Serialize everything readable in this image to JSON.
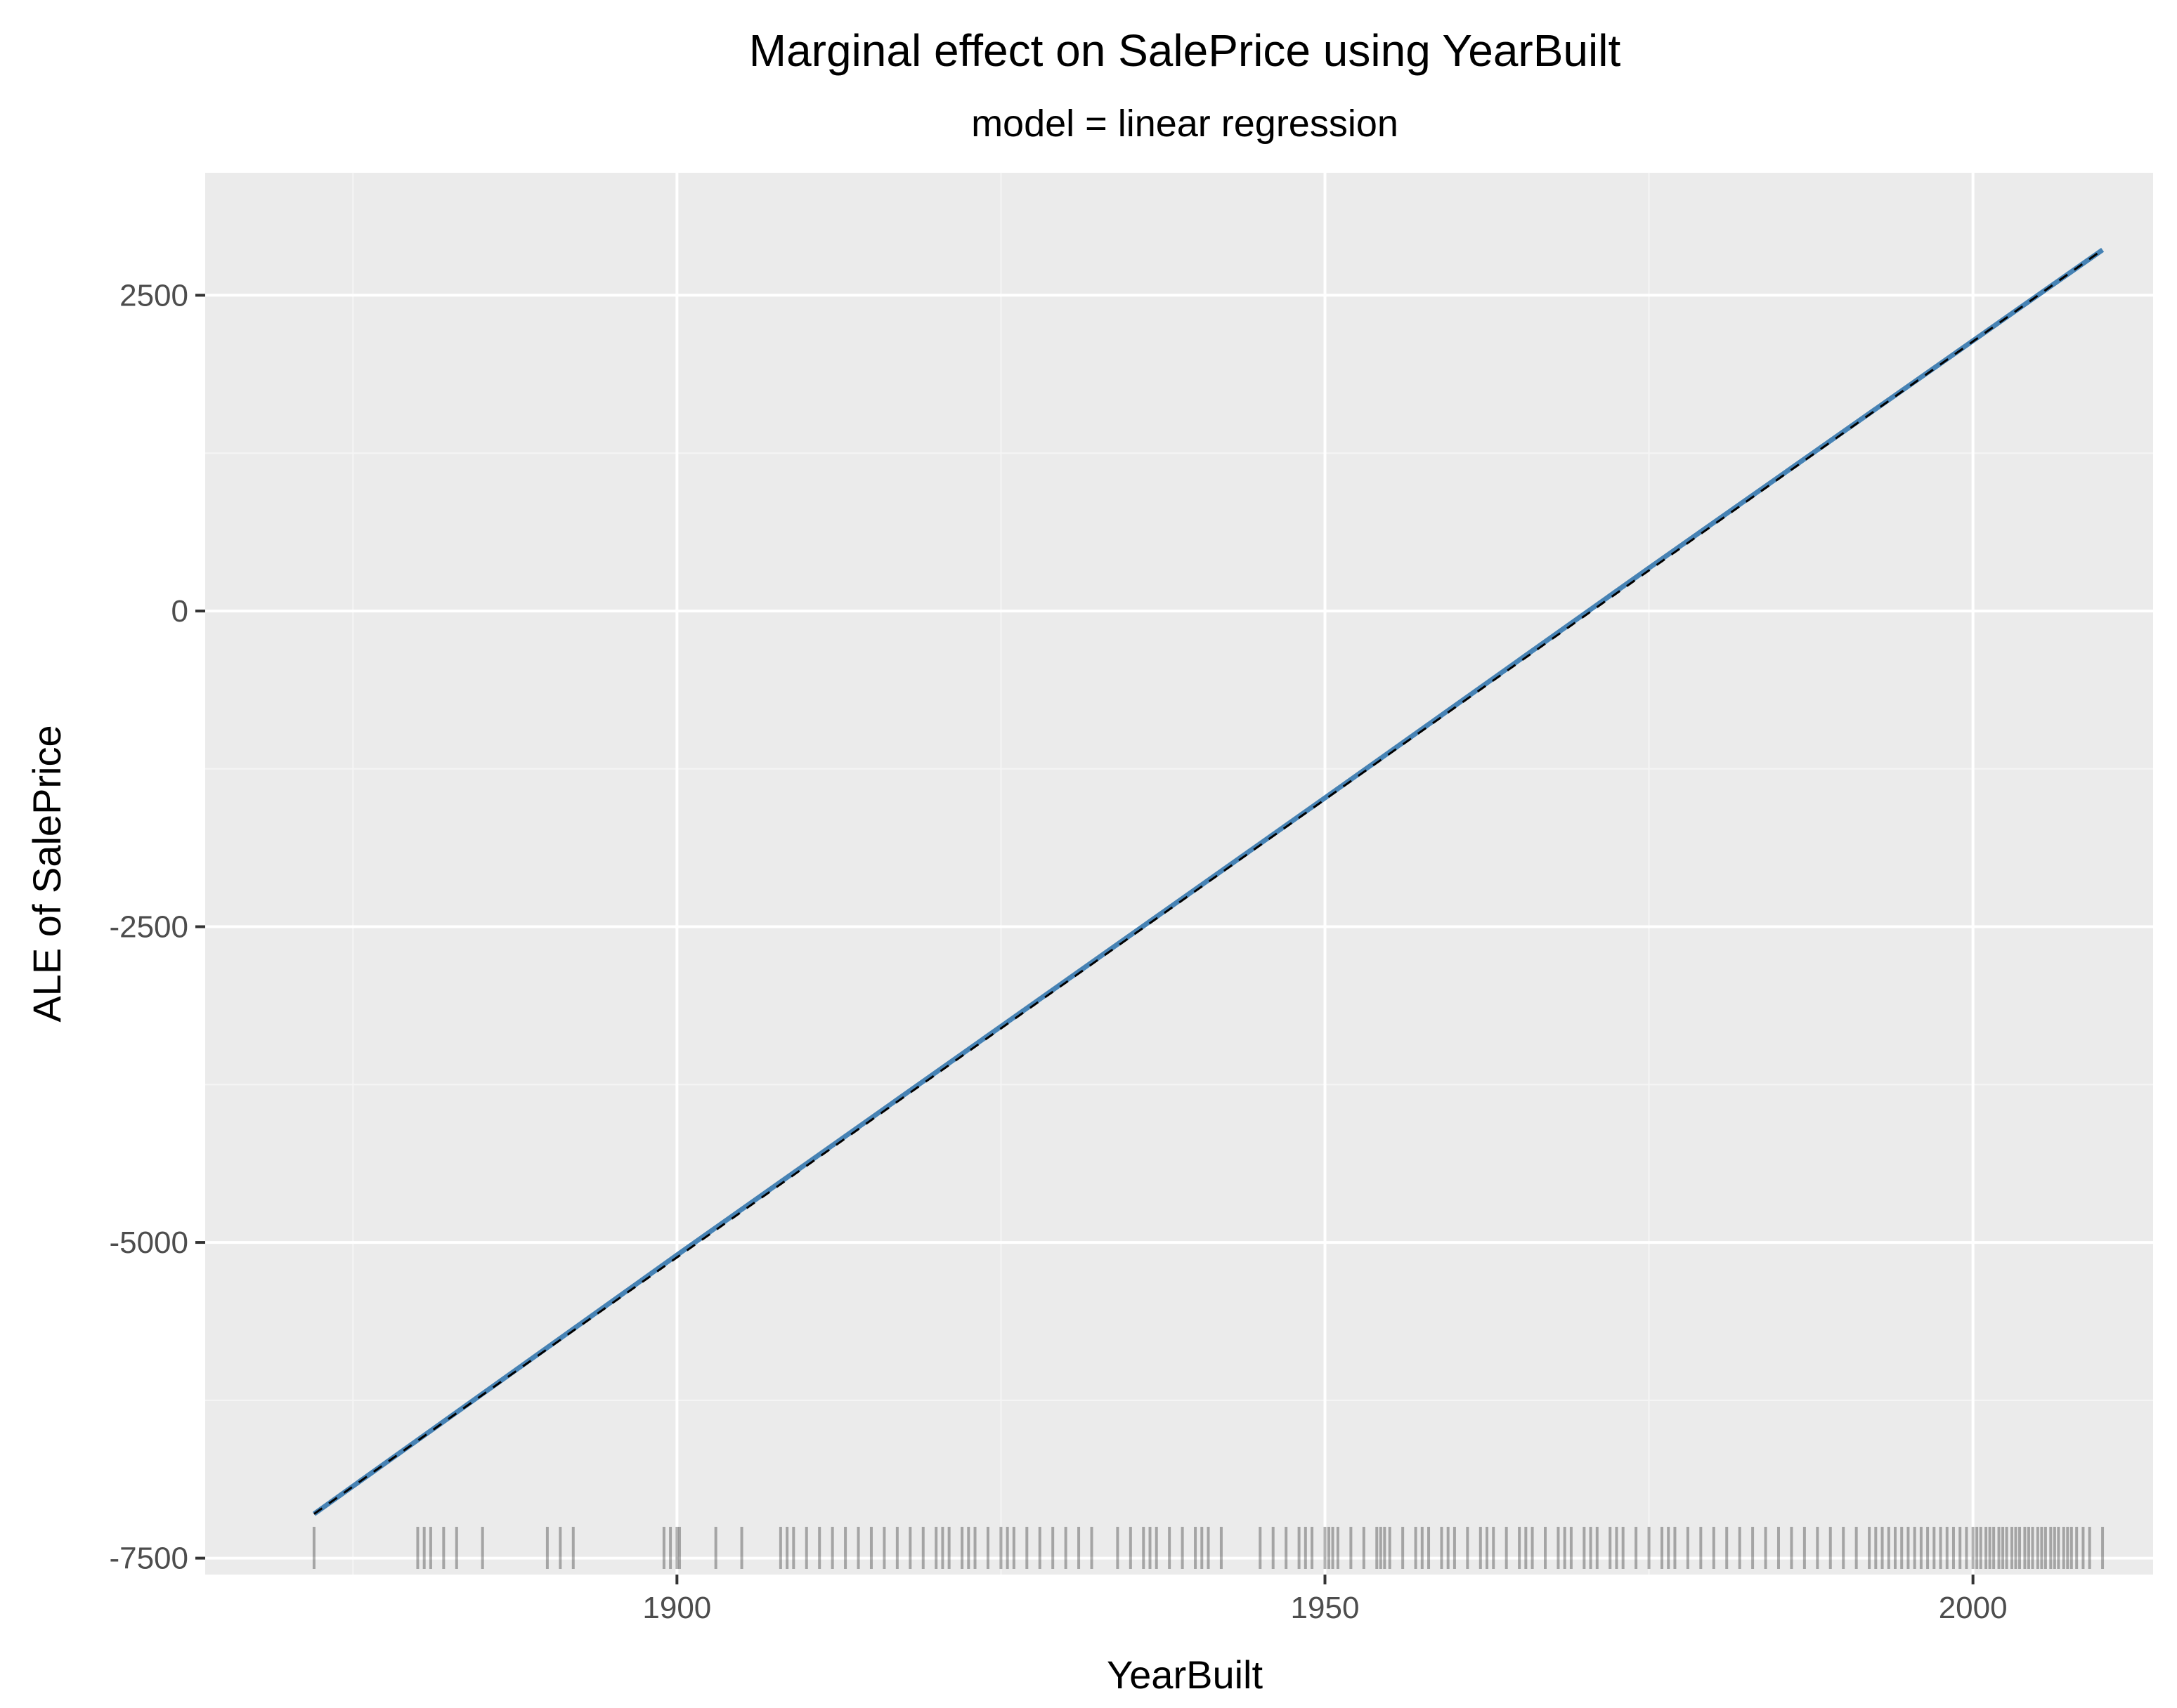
{
  "chart_data": {
    "type": "line",
    "title": "Marginal effect on SalePrice using YearBuilt",
    "subtitle": "model = linear regression",
    "xlabel": "YearBuilt",
    "ylabel": "ALE of SalePrice",
    "xlim": [
      1863.6,
      2013.9
    ],
    "ylim": [
      -7630,
      3470
    ],
    "x_ticks": [
      1900,
      1950,
      2000
    ],
    "x_tick_labels": [
      "1900",
      "1950",
      "2000"
    ],
    "y_ticks": [
      -7500,
      -5000,
      -2500,
      0,
      2500
    ],
    "y_tick_labels": [
      "-7500",
      "-5000",
      "-2500",
      "0",
      "2500"
    ],
    "grid": true,
    "series": [
      {
        "line_style": "solid",
        "color": "#4682B4",
        "points": [
          [
            1872,
            -7150
          ],
          [
            1900,
            -5100
          ],
          [
            1925,
            -3290
          ],
          [
            1950,
            -1480
          ],
          [
            1975,
            340
          ],
          [
            2010,
            2860
          ]
        ]
      },
      {
        "line_style": "dashed",
        "color": "#000000",
        "points": [
          [
            1872,
            -7150
          ],
          [
            2010,
            2860
          ]
        ]
      }
    ],
    "rug": {
      "axis": "x",
      "color": "#000000",
      "values": [
        1872,
        1880,
        1880.5,
        1881,
        1882,
        1883,
        1885,
        1890,
        1891,
        1892,
        1899,
        1899.5,
        1900,
        1900.2,
        1903,
        1905,
        1908,
        1908.5,
        1909,
        1910,
        1911,
        1912,
        1913,
        1914,
        1915,
        1916,
        1917,
        1918,
        1919,
        1920,
        1920.5,
        1921,
        1922,
        1922.5,
        1923,
        1924,
        1925,
        1925.5,
        1926,
        1927,
        1928,
        1929,
        1930,
        1931,
        1932,
        1934,
        1935,
        1936,
        1936.5,
        1937,
        1938,
        1939,
        1940,
        1940.5,
        1941,
        1942,
        1945,
        1946,
        1947,
        1948,
        1948.5,
        1949,
        1950,
        1950.3,
        1950.6,
        1951,
        1952,
        1953,
        1954,
        1954.3,
        1954.6,
        1955,
        1956,
        1957,
        1957.5,
        1958,
        1959,
        1959.5,
        1960,
        1961,
        1962,
        1962.5,
        1963,
        1964,
        1965,
        1965.5,
        1966,
        1967,
        1968,
        1968.5,
        1969,
        1970,
        1970.5,
        1971,
        1972,
        1972.5,
        1973,
        1974,
        1975,
        1976,
        1976.5,
        1977,
        1978,
        1979,
        1980,
        1981,
        1982,
        1983,
        1984,
        1985,
        1986,
        1987,
        1988,
        1989,
        1990,
        1991,
        1992,
        1992.5,
        1993,
        1993.5,
        1994,
        1994.5,
        1995,
        1995.5,
        1996,
        1996.5,
        1997,
        1997.5,
        1998,
        1998.5,
        1999,
        1999.5,
        2000,
        2000.3,
        2000.6,
        2001,
        2001.3,
        2001.6,
        2002,
        2002.3,
        2002.6,
        2003,
        2003.3,
        2003.6,
        2004,
        2004.3,
        2004.6,
        2005,
        2005.3,
        2005.6,
        2006,
        2006.3,
        2006.6,
        2007,
        2007.3,
        2007.6,
        2008,
        2008.5,
        2009,
        2010
      ]
    },
    "colors": {
      "panel_background": "#EBEBEB",
      "grid_major": "#FFFFFF",
      "grid_minor": "#F5F5F5",
      "tick_text": "#4D4D4D",
      "tick_marks": "#333333"
    }
  }
}
